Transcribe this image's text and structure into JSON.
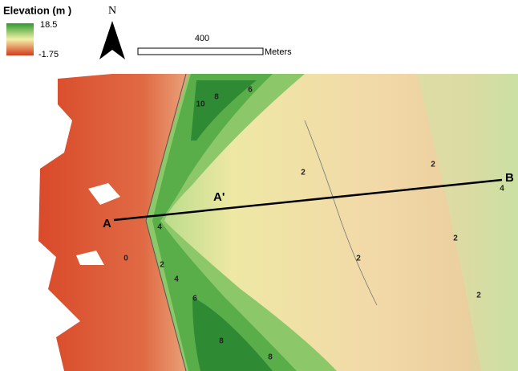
{
  "legend": {
    "title": "Elevation (m )",
    "max": 18.5,
    "min": -1.75
  },
  "north": "N",
  "scale": {
    "distance": 400,
    "unit": "Meters"
  },
  "profile": {
    "start": "A",
    "mid": "A'",
    "end": "B"
  },
  "contour_labels": [
    "10",
    "8",
    "6",
    "2",
    "2",
    "4",
    "4",
    "0",
    "2",
    "4",
    "6",
    "2",
    "2",
    "2",
    "8",
    "8"
  ]
}
